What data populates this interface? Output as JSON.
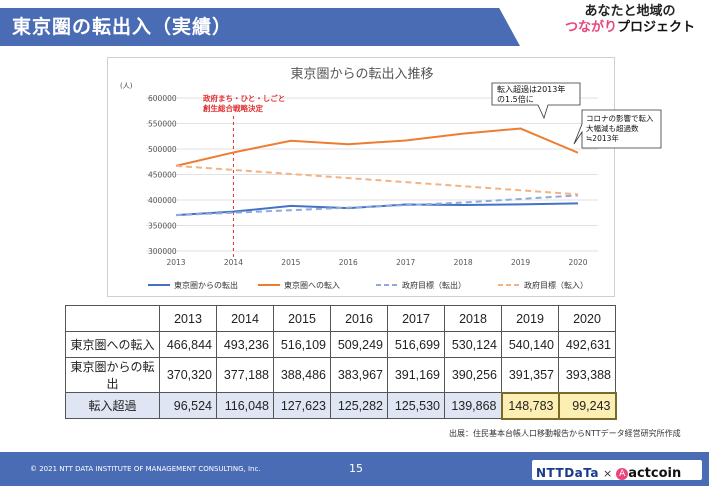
{
  "header": {
    "title": "東京圏の転出入（実績）",
    "brand_line1": "あなたと地域の",
    "brand_line2_pink": "つながり",
    "brand_line2_rest": "プロジェクト"
  },
  "chart_data": {
    "type": "line",
    "title": "東京圏からの転出入推移",
    "yunit": "(人)",
    "x": [
      "2013",
      "2014",
      "2015",
      "2016",
      "2017",
      "2018",
      "2019",
      "2020"
    ],
    "ylim": [
      300000,
      600000
    ],
    "yticks": [
      "600000",
      "550000",
      "500000",
      "450000",
      "400000",
      "350000",
      "300000"
    ],
    "series": [
      {
        "name": "東京圏からの転出",
        "style": "solid",
        "color": "#4472c4",
        "values": [
          370320,
          377188,
          388486,
          383967,
          391169,
          390256,
          391357,
          393388
        ]
      },
      {
        "name": "東京圏への転入",
        "style": "solid",
        "color": "#ed7d31",
        "values": [
          466844,
          493236,
          516109,
          509249,
          516699,
          530124,
          540140,
          492631
        ]
      },
      {
        "name": "政府目標（転出）",
        "style": "dashed",
        "color": "#8faadc",
        "values": [
          370320,
          375000,
          380000,
          385000,
          390000,
          395000,
          402000,
          409000
        ]
      },
      {
        "name": "政府目標（転入）",
        "style": "dashed",
        "color": "#f4b183",
        "values": [
          466844,
          459000,
          451000,
          443000,
          435000,
          427000,
          419000,
          411000
        ]
      }
    ],
    "policy_marker": {
      "x": "2014",
      "label1": "政府まち・ひと・しごと",
      "label2": "創生総合戦略決定"
    },
    "callout1": {
      "line1": "転入超過は2013年",
      "line2": "の1.5倍に"
    },
    "callout2": {
      "line1": "コロナの影響で転入",
      "line2": "大幅減も超過数",
      "line3": "≒2013年"
    }
  },
  "table": {
    "years": [
      "2013",
      "2014",
      "2015",
      "2016",
      "2017",
      "2018",
      "2019",
      "2020"
    ],
    "rows": [
      {
        "label": "東京圏への転入",
        "values": [
          "466,844",
          "493,236",
          "516,109",
          "509,249",
          "516,699",
          "530,124",
          "540,140",
          "492,631"
        ]
      },
      {
        "label": "東京圏からの転出",
        "values": [
          "370,320",
          "377,188",
          "388,486",
          "383,967",
          "391,169",
          "390,256",
          "391,357",
          "393,388"
        ]
      },
      {
        "label": "転入超過",
        "values": [
          "96,524",
          "116,048",
          "127,623",
          "125,282",
          "125,530",
          "139,868",
          "148,783",
          "99,243"
        ]
      }
    ]
  },
  "source": "出展：住民基本台帳人口移動報告からNTTデータ経営研究所作成",
  "footer": {
    "copyright": "© 2021 NTT DATA INSTITUTE OF MANAGEMENT CONSULTING, Inc.",
    "page": "15",
    "ntt": "NTTDaTa",
    "times": "×",
    "actcoin_mark": "A",
    "actcoin": "actcoin"
  }
}
